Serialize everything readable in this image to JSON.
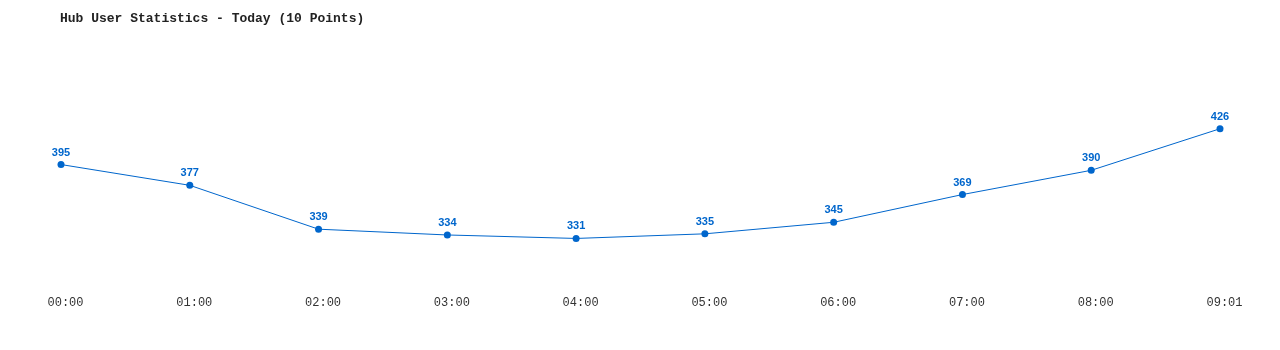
{
  "chart_data": {
    "type": "line",
    "title": "Hub User Statistics - Today (10 Points)",
    "categories": [
      "00:00",
      "01:00",
      "02:00",
      "03:00",
      "04:00",
      "05:00",
      "06:00",
      "07:00",
      "08:00",
      "09:01"
    ],
    "series": [
      {
        "color": "#0066cc",
        "values": [
          395,
          377,
          339,
          334,
          331,
          335,
          345,
          369,
          390,
          426
        ]
      }
    ],
    "data_labels": true,
    "marker": "circle",
    "line_style": "solid",
    "grid": false,
    "legend": false
  }
}
